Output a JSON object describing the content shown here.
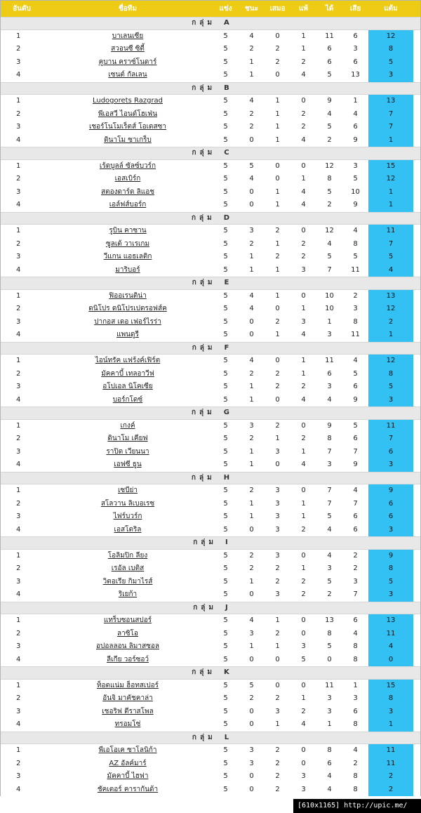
{
  "header": {
    "rank": "อันดับ",
    "team": "ชื่อทีม",
    "played": "แข่ง",
    "won": "ชนะ",
    "drawn": "เสมอ",
    "lost": "แพ้",
    "gf": "ได้",
    "ga": "เสีย",
    "points": "แต้ม"
  },
  "group_prefix": "กลุ่ม",
  "groups": [
    {
      "letter": "A",
      "teams": [
        {
          "rank": "1",
          "name": "บาเลนเซีย",
          "p": "5",
          "w": "4",
          "d": "0",
          "l": "1",
          "gf": "11",
          "ga": "6",
          "pts": "12"
        },
        {
          "rank": "2",
          "name": "สวอนซี ซิตี้",
          "p": "5",
          "w": "2",
          "d": "2",
          "l": "1",
          "gf": "6",
          "ga": "3",
          "pts": "8"
        },
        {
          "rank": "3",
          "name": "คูบาน คราซ์โนดาร์",
          "p": "5",
          "w": "1",
          "d": "2",
          "l": "2",
          "gf": "6",
          "ga": "6",
          "pts": "5"
        },
        {
          "rank": "4",
          "name": "เซนต์ กัลเลน",
          "p": "5",
          "w": "1",
          "d": "0",
          "l": "4",
          "gf": "5",
          "ga": "13",
          "pts": "3"
        }
      ]
    },
    {
      "letter": "B",
      "teams": [
        {
          "rank": "1",
          "name": "Ludogorets Razgrad",
          "p": "5",
          "w": "4",
          "d": "1",
          "l": "0",
          "gf": "9",
          "ga": "1",
          "pts": "13"
        },
        {
          "rank": "2",
          "name": "พีเอสวี ไอนด์โฮเฟ่น",
          "p": "5",
          "w": "2",
          "d": "1",
          "l": "2",
          "gf": "4",
          "ga": "4",
          "pts": "7"
        },
        {
          "rank": "3",
          "name": "เชอร์โนโมเร็ตส์ โอเดสซา",
          "p": "5",
          "w": "2",
          "d": "1",
          "l": "2",
          "gf": "5",
          "ga": "6",
          "pts": "7"
        },
        {
          "rank": "4",
          "name": "ดินาโม ซาเกร็บ",
          "p": "5",
          "w": "0",
          "d": "1",
          "l": "4",
          "gf": "2",
          "ga": "9",
          "pts": "1"
        }
      ]
    },
    {
      "letter": "C",
      "teams": [
        {
          "rank": "1",
          "name": "เร้ดบูลล์ ซัลซ์บวร์ก",
          "p": "5",
          "w": "5",
          "d": "0",
          "l": "0",
          "gf": "12",
          "ga": "3",
          "pts": "15"
        },
        {
          "rank": "2",
          "name": "เอสเบิร์ก",
          "p": "5",
          "w": "4",
          "d": "0",
          "l": "1",
          "gf": "8",
          "ga": "5",
          "pts": "12"
        },
        {
          "rank": "3",
          "name": "สตองดาร์ด ลิแอช",
          "p": "5",
          "w": "0",
          "d": "1",
          "l": "4",
          "gf": "5",
          "ga": "10",
          "pts": "1"
        },
        {
          "rank": "4",
          "name": "เอล์ฟส์บอร์ก",
          "p": "5",
          "w": "0",
          "d": "1",
          "l": "4",
          "gf": "2",
          "ga": "9",
          "pts": "1"
        }
      ]
    },
    {
      "letter": "D",
      "teams": [
        {
          "rank": "1",
          "name": "รูบิน คาซาน",
          "p": "5",
          "w": "3",
          "d": "2",
          "l": "0",
          "gf": "12",
          "ga": "4",
          "pts": "11"
        },
        {
          "rank": "2",
          "name": "ซูลเต้ วาเรเกม",
          "p": "5",
          "w": "2",
          "d": "1",
          "l": "2",
          "gf": "4",
          "ga": "8",
          "pts": "7"
        },
        {
          "rank": "3",
          "name": "วีแกน แอธเลติก",
          "p": "5",
          "w": "1",
          "d": "2",
          "l": "2",
          "gf": "5",
          "ga": "5",
          "pts": "5"
        },
        {
          "rank": "4",
          "name": "มาริบอร์",
          "p": "5",
          "w": "1",
          "d": "1",
          "l": "3",
          "gf": "7",
          "ga": "11",
          "pts": "4"
        }
      ]
    },
    {
      "letter": "E",
      "teams": [
        {
          "rank": "1",
          "name": "ฟิออเรนติน่า",
          "p": "5",
          "w": "4",
          "d": "1",
          "l": "0",
          "gf": "10",
          "ga": "2",
          "pts": "13"
        },
        {
          "rank": "2",
          "name": "ดนิโปร ดนิโปรเปตรอฟส์ค",
          "p": "5",
          "w": "4",
          "d": "0",
          "l": "1",
          "gf": "10",
          "ga": "3",
          "pts": "12"
        },
        {
          "rank": "3",
          "name": "ปากอส เดอ เฟอร์ไรร่า",
          "p": "5",
          "w": "0",
          "d": "2",
          "l": "3",
          "gf": "1",
          "ga": "8",
          "pts": "2"
        },
        {
          "rank": "4",
          "name": "แพนดูรี",
          "p": "5",
          "w": "0",
          "d": "1",
          "l": "4",
          "gf": "3",
          "ga": "11",
          "pts": "1"
        }
      ]
    },
    {
      "letter": "F",
      "teams": [
        {
          "rank": "1",
          "name": "ไอน์ทรัค แฟร้งค์เฟิร์ต",
          "p": "5",
          "w": "4",
          "d": "0",
          "l": "1",
          "gf": "11",
          "ga": "4",
          "pts": "12"
        },
        {
          "rank": "2",
          "name": "มัคคาบี้ เทลอาวีฟ",
          "p": "5",
          "w": "2",
          "d": "2",
          "l": "1",
          "gf": "6",
          "ga": "5",
          "pts": "8"
        },
        {
          "rank": "3",
          "name": "อโปเอล นิโคเซีย",
          "p": "5",
          "w": "1",
          "d": "2",
          "l": "2",
          "gf": "3",
          "ga": "6",
          "pts": "5"
        },
        {
          "rank": "4",
          "name": "บอร์กโดซ์",
          "p": "5",
          "w": "1",
          "d": "0",
          "l": "4",
          "gf": "4",
          "ga": "9",
          "pts": "3"
        }
      ]
    },
    {
      "letter": "G",
      "teams": [
        {
          "rank": "1",
          "name": "เกงค์",
          "p": "5",
          "w": "3",
          "d": "2",
          "l": "0",
          "gf": "9",
          "ga": "5",
          "pts": "11"
        },
        {
          "rank": "2",
          "name": "ดินาโม เคียฟ",
          "p": "5",
          "w": "2",
          "d": "1",
          "l": "2",
          "gf": "8",
          "ga": "6",
          "pts": "7"
        },
        {
          "rank": "3",
          "name": "ราปิด เวียนนา",
          "p": "5",
          "w": "1",
          "d": "3",
          "l": "1",
          "gf": "7",
          "ga": "7",
          "pts": "6"
        },
        {
          "rank": "4",
          "name": "เอฟซี ธูน",
          "p": "5",
          "w": "1",
          "d": "0",
          "l": "4",
          "gf": "3",
          "ga": "9",
          "pts": "3"
        }
      ]
    },
    {
      "letter": "H",
      "teams": [
        {
          "rank": "1",
          "name": "เซบีย่า",
          "p": "5",
          "w": "2",
          "d": "3",
          "l": "0",
          "gf": "7",
          "ga": "4",
          "pts": "9"
        },
        {
          "rank": "2",
          "name": "สโลวาน ลิเบอเรซ",
          "p": "5",
          "w": "1",
          "d": "3",
          "l": "1",
          "gf": "7",
          "ga": "7",
          "pts": "6"
        },
        {
          "rank": "3",
          "name": "ไฟร์บวร์ก",
          "p": "5",
          "w": "1",
          "d": "3",
          "l": "1",
          "gf": "5",
          "ga": "6",
          "pts": "6"
        },
        {
          "rank": "4",
          "name": "เอสโตริล",
          "p": "5",
          "w": "0",
          "d": "3",
          "l": "2",
          "gf": "4",
          "ga": "6",
          "pts": "3"
        }
      ]
    },
    {
      "letter": "I",
      "teams": [
        {
          "rank": "1",
          "name": "โอลิมปิก ลียง",
          "p": "5",
          "w": "2",
          "d": "3",
          "l": "0",
          "gf": "4",
          "ga": "2",
          "pts": "9"
        },
        {
          "rank": "2",
          "name": "เรอัล เบติส",
          "p": "5",
          "w": "2",
          "d": "2",
          "l": "1",
          "gf": "3",
          "ga": "2",
          "pts": "8"
        },
        {
          "rank": "3",
          "name": "วิตอเรีย กิมาไรส์",
          "p": "5",
          "w": "1",
          "d": "2",
          "l": "2",
          "gf": "5",
          "ga": "3",
          "pts": "5"
        },
        {
          "rank": "4",
          "name": "ริเยก้า",
          "p": "5",
          "w": "0",
          "d": "3",
          "l": "2",
          "gf": "2",
          "ga": "7",
          "pts": "3"
        }
      ]
    },
    {
      "letter": "J",
      "teams": [
        {
          "rank": "1",
          "name": "แทร็บซอนสปอร์",
          "p": "5",
          "w": "4",
          "d": "1",
          "l": "0",
          "gf": "13",
          "ga": "6",
          "pts": "13"
        },
        {
          "rank": "2",
          "name": "ลาซิโอ",
          "p": "5",
          "w": "3",
          "d": "2",
          "l": "0",
          "gf": "8",
          "ga": "4",
          "pts": "11"
        },
        {
          "rank": "3",
          "name": "อปอลลอน ลิมาสซอล",
          "p": "5",
          "w": "1",
          "d": "1",
          "l": "3",
          "gf": "5",
          "ga": "8",
          "pts": "4"
        },
        {
          "rank": "4",
          "name": "ลีเกีย วอร์ซอว์",
          "p": "5",
          "w": "0",
          "d": "0",
          "l": "5",
          "gf": "0",
          "ga": "8",
          "pts": "0"
        }
      ]
    },
    {
      "letter": "K",
      "teams": [
        {
          "rank": "1",
          "name": "ท็อตแน่ม ฮ็อทสเปอร์",
          "p": "5",
          "w": "5",
          "d": "0",
          "l": "0",
          "gf": "11",
          "ga": "1",
          "pts": "15"
        },
        {
          "rank": "2",
          "name": "อันจิ มาคัชคาล่า",
          "p": "5",
          "w": "2",
          "d": "2",
          "l": "1",
          "gf": "3",
          "ga": "3",
          "pts": "8"
        },
        {
          "rank": "3",
          "name": "เชอริฟ ตีราสโพล",
          "p": "5",
          "w": "0",
          "d": "3",
          "l": "2",
          "gf": "3",
          "ga": "6",
          "pts": "3"
        },
        {
          "rank": "4",
          "name": "ทรอมโซ่",
          "p": "5",
          "w": "0",
          "d": "1",
          "l": "4",
          "gf": "1",
          "ga": "8",
          "pts": "1"
        }
      ]
    },
    {
      "letter": "L",
      "teams": [
        {
          "rank": "1",
          "name": "พีเอโอเค ซาโลนิก้า",
          "p": "5",
          "w": "3",
          "d": "2",
          "l": "0",
          "gf": "8",
          "ga": "4",
          "pts": "11"
        },
        {
          "rank": "2",
          "name": "AZ อัลค์มาร์",
          "p": "5",
          "w": "3",
          "d": "2",
          "l": "0",
          "gf": "6",
          "ga": "2",
          "pts": "11"
        },
        {
          "rank": "3",
          "name": "มัคคาบี้ ไฮฟา",
          "p": "5",
          "w": "0",
          "d": "2",
          "l": "3",
          "gf": "4",
          "ga": "8",
          "pts": "2"
        },
        {
          "rank": "4",
          "name": "ชัคเตอร์ คารากันด้า",
          "p": "5",
          "w": "0",
          "d": "2",
          "l": "3",
          "gf": "4",
          "ga": "8",
          "pts": "2"
        }
      ]
    }
  ],
  "watermark": "[610x1165] http://upic.me/",
  "colors": {
    "header_bg": "#eecb14",
    "points_bg": "#33c0f2",
    "group_bg": "#e8e8e8"
  }
}
